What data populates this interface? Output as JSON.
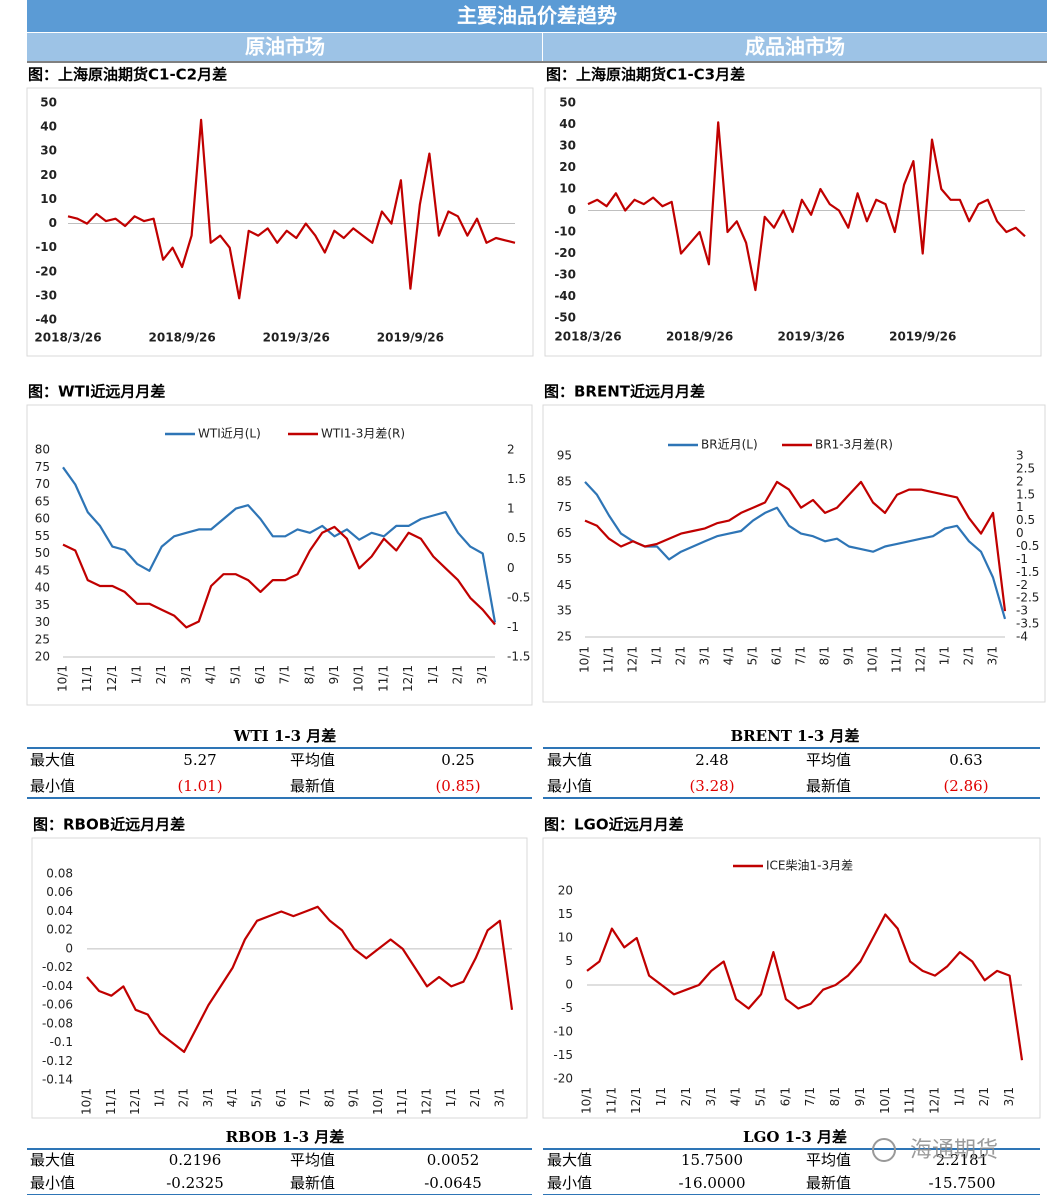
{
  "header": {
    "title": "主要油品价差趋势",
    "left": "原油市场",
    "right": "成品油市场"
  },
  "chart_data": [
    {
      "type": "line",
      "title": "图：上海原油期货C1-C2月差",
      "categories": [
        "2018/3/26",
        null,
        null,
        null,
        null,
        null,
        null,
        null,
        null,
        null,
        null,
        null,
        "2018/9/26",
        null,
        null,
        null,
        null,
        null,
        null,
        null,
        null,
        null,
        null,
        null,
        "2019/3/26",
        null,
        null,
        null,
        null,
        null,
        null,
        null,
        null,
        null,
        null,
        null,
        "2019/9/26",
        null,
        null,
        null,
        null,
        null,
        null,
        null,
        null,
        null,
        null,
        null
      ],
      "series": [
        {
          "color": "#c00000",
          "values": [
            3,
            2,
            0,
            4,
            1,
            2,
            -1,
            3,
            1,
            2,
            -15,
            -10,
            -18,
            -5,
            43,
            -8,
            -5,
            -10,
            -31,
            -3,
            -5,
            -2,
            -8,
            -3,
            -6,
            0,
            -5,
            -12,
            -3,
            -6,
            -2,
            -5,
            -8,
            5,
            0,
            18,
            -27,
            8,
            29,
            -5,
            5,
            3,
            -5,
            2,
            -8,
            -6,
            -7,
            -8
          ]
        }
      ],
      "ylim": [
        -40,
        50
      ],
      "yticks": [
        -40,
        -30,
        -20,
        -10,
        0,
        10,
        20,
        30,
        40,
        50
      ]
    },
    {
      "type": "line",
      "title": "图：上海原油期货C1-C3月差",
      "categories": [
        "2018/3/26",
        null,
        null,
        null,
        null,
        null,
        null,
        null,
        null,
        null,
        null,
        null,
        "2018/9/26",
        null,
        null,
        null,
        null,
        null,
        null,
        null,
        null,
        null,
        null,
        null,
        "2019/3/26",
        null,
        null,
        null,
        null,
        null,
        null,
        null,
        null,
        null,
        null,
        null,
        "2019/9/26",
        null,
        null,
        null,
        null,
        null,
        null,
        null,
        null,
        null,
        null,
        null
      ],
      "series": [
        {
          "color": "#c00000",
          "values": [
            3,
            5,
            2,
            8,
            0,
            5,
            3,
            6,
            2,
            4,
            -20,
            -15,
            -10,
            -25,
            41,
            -10,
            -5,
            -15,
            -37,
            -3,
            -8,
            0,
            -10,
            5,
            -2,
            10,
            3,
            0,
            -8,
            8,
            -5,
            5,
            3,
            -10,
            12,
            23,
            -20,
            33,
            10,
            5,
            5,
            -5,
            3,
            5,
            -5,
            -10,
            -8,
            -12
          ]
        }
      ],
      "ylim": [
        -50,
        50
      ],
      "yticks": [
        -50,
        -40,
        -30,
        -20,
        -10,
        0,
        10,
        20,
        30,
        40,
        50
      ]
    },
    {
      "type": "line",
      "title": "图：WTI近远月月差",
      "categories": [
        "10/1",
        null,
        "11/1",
        null,
        "12/1",
        null,
        "1/1",
        null,
        "2/1",
        null,
        "3/1",
        null,
        "4/1",
        null,
        "5/1",
        null,
        "6/1",
        null,
        "7/1",
        null,
        "8/1",
        null,
        "9/1",
        null,
        "10/1",
        null,
        "11/1",
        null,
        "12/1",
        null,
        "1/1",
        null,
        "2/1",
        null,
        "3/1",
        null
      ],
      "series": [
        {
          "name": "WTI近月(L)",
          "color": "#2e75b6",
          "values": [
            75,
            70,
            62,
            58,
            52,
            51,
            47,
            45,
            52,
            55,
            56,
            57,
            57,
            60,
            63,
            64,
            60,
            55,
            55,
            57,
            56,
            58,
            55,
            57,
            54,
            56,
            55,
            58,
            58,
            60,
            61,
            62,
            56,
            52,
            50,
            30
          ]
        },
        {
          "name": "WTI1-3月差(R)",
          "color": "#c00000",
          "axis": "y2",
          "values": [
            0.4,
            0.3,
            -0.2,
            -0.3,
            -0.3,
            -0.4,
            -0.6,
            -0.6,
            -0.7,
            -0.8,
            -1.0,
            -0.9,
            -0.3,
            -0.1,
            -0.1,
            -0.2,
            -0.4,
            -0.2,
            -0.2,
            -0.1,
            0.3,
            0.6,
            0.7,
            0.5,
            0.0,
            0.2,
            0.5,
            0.3,
            0.6,
            0.5,
            0.2,
            0.0,
            -0.2,
            -0.5,
            -0.7,
            -0.95
          ]
        }
      ],
      "ylim": [
        20,
        80
      ],
      "yticks": [
        20,
        25,
        30,
        35,
        40,
        45,
        50,
        55,
        60,
        65,
        70,
        75,
        80
      ],
      "y2lim": [
        -1.5,
        2
      ],
      "y2ticks": [
        -1.5,
        -1,
        -0.5,
        0,
        0.5,
        1,
        1.5,
        2
      ]
    },
    {
      "type": "line",
      "title": "图：BRENT近远月月差",
      "categories": [
        "10/1",
        null,
        "11/1",
        null,
        "12/1",
        null,
        "1/1",
        null,
        "2/1",
        null,
        "3/1",
        null,
        "4/1",
        null,
        "5/1",
        null,
        "6/1",
        null,
        "7/1",
        null,
        "8/1",
        null,
        "9/1",
        null,
        "10/1",
        null,
        "11/1",
        null,
        "12/1",
        null,
        "1/1",
        null,
        "2/1",
        null,
        "3/1",
        null
      ],
      "series": [
        {
          "name": "BR近月(L)",
          "color": "#2e75b6",
          "values": [
            85,
            80,
            72,
            65,
            62,
            60,
            60,
            55,
            58,
            60,
            62,
            64,
            65,
            66,
            70,
            73,
            75,
            68,
            65,
            64,
            62,
            63,
            60,
            59,
            58,
            60,
            61,
            62,
            63,
            64,
            67,
            68,
            62,
            58,
            48,
            32
          ]
        },
        {
          "name": "BR1-3月差(R)",
          "color": "#c00000",
          "axis": "y2",
          "values": [
            0.5,
            0.3,
            -0.2,
            -0.5,
            -0.3,
            -0.5,
            -0.4,
            -0.2,
            0.0,
            0.1,
            0.2,
            0.4,
            0.5,
            0.8,
            1.0,
            1.2,
            2.0,
            1.7,
            1.0,
            1.3,
            0.8,
            1.0,
            1.5,
            2.0,
            1.2,
            0.8,
            1.5,
            1.7,
            1.7,
            1.6,
            1.5,
            1.4,
            0.6,
            0.0,
            0.8,
            -3.0
          ]
        }
      ],
      "ylim": [
        25,
        95
      ],
      "yticks": [
        25,
        35,
        45,
        55,
        65,
        75,
        85,
        95
      ],
      "y2lim": [
        -4,
        3
      ],
      "y2ticks": [
        -4,
        -3.5,
        -3,
        -2.5,
        -2,
        -1.5,
        -1,
        -0.5,
        0,
        0.5,
        1,
        1.5,
        2,
        2.5,
        3
      ]
    },
    {
      "type": "line",
      "title": "图：RBOB近远月月差",
      "categories": [
        "10/1",
        null,
        "11/1",
        null,
        "12/1",
        null,
        "1/1",
        null,
        "2/1",
        null,
        "3/1",
        null,
        "4/1",
        null,
        "5/1",
        null,
        "6/1",
        null,
        "7/1",
        null,
        "8/1",
        null,
        "9/1",
        null,
        "10/1",
        null,
        "11/1",
        null,
        "12/1",
        null,
        "1/1",
        null,
        "2/1",
        null,
        "3/1",
        null
      ],
      "series": [
        {
          "color": "#c00000",
          "values": [
            -0.03,
            -0.045,
            -0.05,
            -0.04,
            -0.065,
            -0.07,
            -0.09,
            -0.1,
            -0.11,
            -0.085,
            -0.06,
            -0.04,
            -0.02,
            0.01,
            0.03,
            0.035,
            0.04,
            0.035,
            0.04,
            0.045,
            0.03,
            0.02,
            0.0,
            -0.01,
            0.0,
            0.01,
            0.0,
            -0.02,
            -0.04,
            -0.03,
            -0.04,
            -0.035,
            -0.01,
            0.02,
            0.03,
            -0.065
          ]
        }
      ],
      "ylim": [
        -0.14,
        0.08
      ],
      "yticks": [
        -0.14,
        -0.12,
        -0.1,
        -0.08,
        -0.06,
        -0.04,
        -0.02,
        0,
        0.02,
        0.04,
        0.06,
        0.08
      ]
    },
    {
      "type": "line",
      "title": "图：LGO近远月月差",
      "categories": [
        "10/1",
        null,
        "11/1",
        null,
        "12/1",
        null,
        "1/1",
        null,
        "2/1",
        null,
        "3/1",
        null,
        "4/1",
        null,
        "5/1",
        null,
        "6/1",
        null,
        "7/1",
        null,
        "8/1",
        null,
        "9/1",
        null,
        "10/1",
        null,
        "11/1",
        null,
        "12/1",
        null,
        "1/1",
        null,
        "2/1",
        null,
        "3/1",
        null
      ],
      "series": [
        {
          "name": "ICE柴油1-3月差",
          "color": "#c00000",
          "values": [
            3,
            5,
            12,
            8,
            10,
            2,
            0,
            -2,
            -1,
            0,
            3,
            5,
            -3,
            -5,
            -2,
            7,
            -3,
            -5,
            -4,
            -1,
            0,
            2,
            5,
            10,
            15,
            12,
            5,
            3,
            2,
            4,
            7,
            5,
            1,
            3,
            2,
            -16
          ]
        }
      ],
      "ylim": [
        -20,
        20
      ],
      "yticks": [
        -20,
        -15,
        -10,
        -5,
        0,
        5,
        10,
        15,
        20
      ]
    }
  ],
  "tables": [
    {
      "title": "WTI 1-3 月差",
      "rows": [
        [
          "最大值",
          "5.27",
          "平均值",
          "0.25"
        ],
        [
          "最小值",
          "(1.01)",
          "最新值",
          "(0.85)"
        ]
      ]
    },
    {
      "title": "BRENT 1-3 月差",
      "rows": [
        [
          "最大值",
          "2.48",
          "平均值",
          "0.63"
        ],
        [
          "最小值",
          "(3.28)",
          "最新值",
          "(2.86)"
        ]
      ]
    },
    {
      "title": "RBOB 1-3 月差",
      "rows": [
        [
          "最大值",
          "0.2196",
          "平均值",
          "0.0052"
        ],
        [
          "最小值",
          "-0.2325",
          "最新值",
          "-0.0645"
        ]
      ]
    },
    {
      "title": "LGO 1-3 月差",
      "rows": [
        [
          "最大值",
          "15.7500",
          "平均值",
          "2.2181"
        ],
        [
          "最小值",
          "-16.0000",
          "最新值",
          "-15.7500"
        ]
      ]
    }
  ],
  "watermark": "海通期货"
}
